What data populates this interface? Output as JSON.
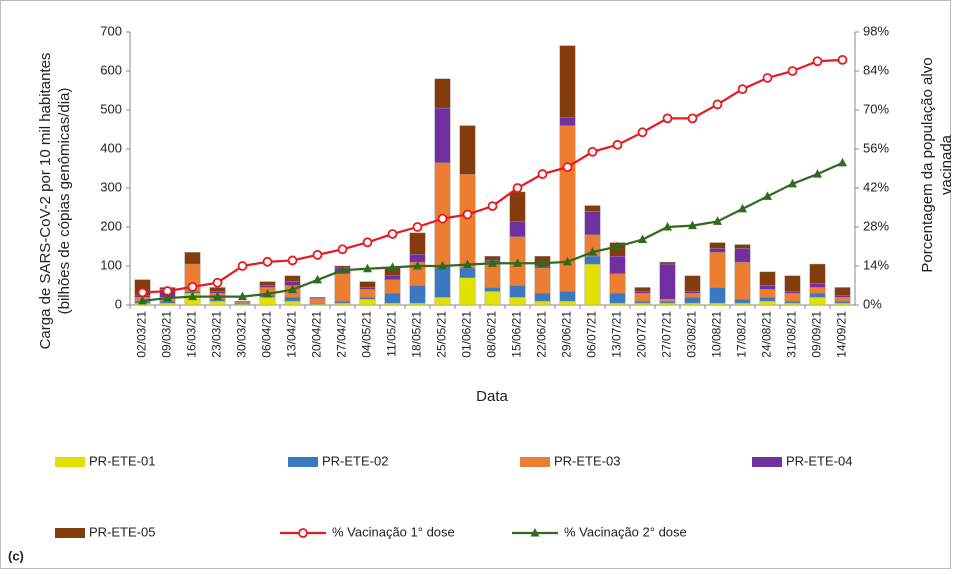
{
  "chart_data": {
    "type": "bar-line",
    "panel_label": "(c)",
    "x_label": "Data",
    "y_label": [
      "Carga de SARS-CoV-2 por 10 mil habitantes",
      "(bilhões de cópias genômicas/dia)"
    ],
    "y2_label": [
      "Porcentagem da população alvo",
      "vacinada"
    ],
    "categories": [
      "02/03/21",
      "09/03/21",
      "16/03/21",
      "23/03/21",
      "30/03/21",
      "06/04/21",
      "13/04/21",
      "20/04/21",
      "27/04/21",
      "04/05/21",
      "11/05/21",
      "18/05/21",
      "25/05/21",
      "01/06/21",
      "08/06/21",
      "15/06/21",
      "22/06/21",
      "29/06/21",
      "06/07/21",
      "13/07/21",
      "20/07/21",
      "27/07/21",
      "03/08/21",
      "10/08/21",
      "17/08/21",
      "24/08/21",
      "31/08/21",
      "09/09/21",
      "14/09/21"
    ],
    "ylim": [
      0,
      700
    ],
    "yticks": [
      0,
      100,
      200,
      300,
      400,
      500,
      600,
      700
    ],
    "y2lim": [
      0,
      98
    ],
    "y2ticks": [
      {
        "value": 0,
        "label": "0%"
      },
      {
        "value": 14,
        "label": "14%"
      },
      {
        "value": 28,
        "label": "28%"
      },
      {
        "value": 42,
        "label": "42%"
      },
      {
        "value": 56,
        "label": "56%"
      },
      {
        "value": 70,
        "label": "70%"
      },
      {
        "value": 84,
        "label": "84%"
      },
      {
        "value": 98,
        "label": "98%"
      }
    ],
    "series": [
      {
        "name": "PR-ETE-01",
        "kind": "bar",
        "color": "#e2e000",
        "values": [
          5,
          5,
          30,
          10,
          2,
          20,
          10,
          2,
          5,
          15,
          5,
          5,
          20,
          70,
          35,
          20,
          10,
          10,
          105,
          5,
          5,
          5,
          5,
          5,
          5,
          10,
          5,
          20,
          5
        ]
      },
      {
        "name": "PR-ETE-02",
        "kind": "bar",
        "color": "#3a78c2",
        "values": [
          5,
          5,
          5,
          5,
          2,
          5,
          10,
          2,
          5,
          5,
          25,
          45,
          80,
          25,
          10,
          30,
          20,
          25,
          20,
          25,
          5,
          5,
          15,
          40,
          10,
          10,
          5,
          10,
          5
        ]
      },
      {
        "name": "PR-ETE-03",
        "kind": "bar",
        "color": "#ed7d31",
        "values": [
          10,
          10,
          70,
          15,
          3,
          20,
          30,
          12,
          70,
          20,
          35,
          60,
          265,
          240,
          65,
          125,
          65,
          425,
          55,
          50,
          20,
          5,
          10,
          90,
          95,
          20,
          20,
          15,
          10
        ]
      },
      {
        "name": "PR-ETE-04",
        "kind": "bar",
        "color": "#7030a0",
        "values": [
          5,
          20,
          0,
          5,
          1,
          5,
          10,
          2,
          15,
          5,
          10,
          20,
          140,
          0,
          5,
          40,
          5,
          20,
          60,
          45,
          5,
          90,
          5,
          10,
          35,
          10,
          5,
          10,
          5
        ]
      },
      {
        "name": "PR-ETE-05",
        "kind": "bar",
        "color": "#843c0c",
        "values": [
          40,
          5,
          30,
          10,
          2,
          10,
          15,
          2,
          5,
          15,
          20,
          55,
          75,
          125,
          10,
          75,
          25,
          185,
          15,
          35,
          10,
          5,
          40,
          15,
          10,
          35,
          40,
          50,
          20
        ]
      },
      {
        "name": "% Vacinação 1° dose",
        "kind": "line",
        "axis": "y2",
        "marker": "circle",
        "color": "#e8191e",
        "values": [
          4.5,
          5,
          6.5,
          8,
          14,
          15.5,
          16,
          18,
          20,
          22.5,
          25.5,
          28,
          31,
          32.5,
          35.5,
          42,
          47,
          49.5,
          55,
          57.5,
          62,
          67,
          67,
          72,
          77.5,
          81.5,
          84,
          87.5,
          88
        ]
      },
      {
        "name": "% Vacinação 2° dose",
        "kind": "line",
        "axis": "y2",
        "marker": "triangle",
        "color": "#2e6b1e",
        "values": [
          1.5,
          2.5,
          3,
          3,
          3,
          4,
          5.5,
          9,
          12.5,
          13,
          13.5,
          14,
          14,
          14.5,
          15,
          15,
          15,
          15.5,
          19,
          21,
          23.5,
          28,
          28.5,
          30,
          34.5,
          39,
          43.5,
          47,
          51
        ]
      }
    ]
  }
}
